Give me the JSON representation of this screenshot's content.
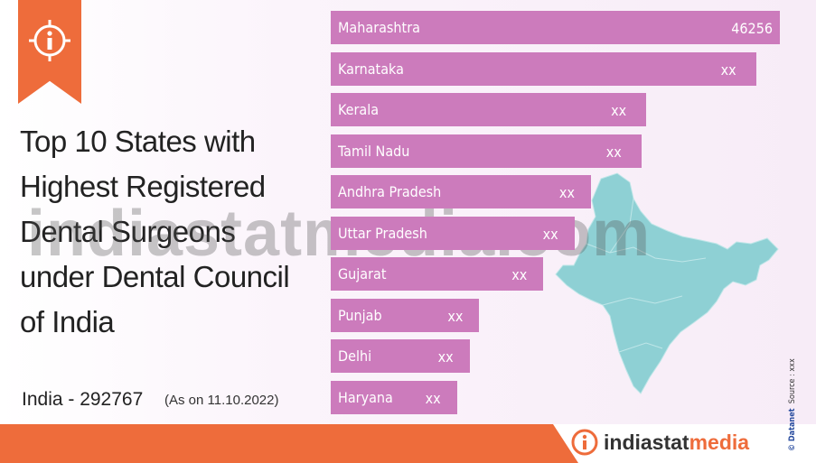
{
  "title_lines": [
    "Top 10 States with",
    "Highest Registered",
    "Dental Surgeons",
    "under Dental Council",
    "of India"
  ],
  "total": "India - 292767",
  "as_on": "(As on 11.10.2022)",
  "brand": {
    "prefix": "indiastat",
    "suffix": "media"
  },
  "watermark": "indiastatmedia.com",
  "side_brand": "© Datanet",
  "side_source": "Source : xxx",
  "colors": {
    "bar": "#cc7bbc",
    "accent": "#ee6c3b",
    "map": "#8ed0d4"
  },
  "chart_data": {
    "type": "bar",
    "orientation": "horizontal",
    "categories": [
      "Maharashtra",
      "Karnataka",
      "Kerala",
      "Tamil Nadu",
      "Andhra Pradesh",
      "Uttar Pradesh",
      "Gujarat",
      "Punjab",
      "Delhi",
      "Haryana"
    ],
    "values": [
      46256,
      43800,
      32500,
      32000,
      26800,
      25100,
      21900,
      15300,
      14300,
      13000
    ],
    "labels": [
      "46256",
      "xx",
      "xx",
      "xx",
      "xx",
      "xx",
      "xx",
      "xx",
      "xx",
      "xx"
    ],
    "xlim": [
      0,
      46256
    ]
  }
}
